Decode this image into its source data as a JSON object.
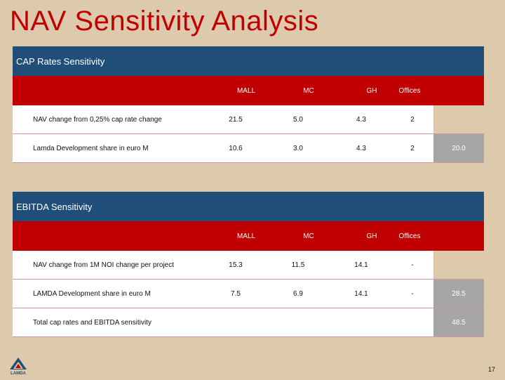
{
  "title": "NAV Sensitivity Analysis",
  "cap": {
    "heading": "CAP Rates Sensitivity",
    "headers": [
      "MALL",
      "MC",
      "GH",
      "Offices"
    ],
    "rows": [
      {
        "label": "NAV change  from 0,25% cap rate change",
        "values": [
          "21.5",
          "5.0",
          "4.3",
          "2"
        ],
        "total": ""
      },
      {
        "label": "Lamda Development share in euro M",
        "values": [
          "10.6",
          "3.0",
          "4.3",
          "2"
        ],
        "total": "20.0"
      }
    ]
  },
  "ebitda": {
    "heading": "EBITDA Sensitivity",
    "headers": [
      "MALL",
      "MC",
      "GH",
      "Offices"
    ],
    "rows": [
      {
        "label": "NAV change from 1M NOI change per project",
        "values": [
          "15.3",
          "11.5",
          "14.1",
          "-"
        ],
        "total": ""
      },
      {
        "label": "LAMDA Development share in euro M",
        "values": [
          "7.5",
          "6.9",
          "14.1",
          "-"
        ],
        "total": "28.5"
      }
    ],
    "grand_total_label": "Total  cap rates and EBITDA sensitivity",
    "grand_total_value": "48.5"
  },
  "logo": {
    "text": "LAMDA",
    "color": "#1f4e79",
    "accent": "#c00000"
  },
  "page_number": "17"
}
